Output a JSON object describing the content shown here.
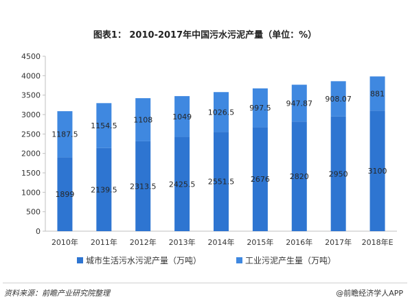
{
  "chart_data": {
    "type": "bar",
    "stacked": true,
    "title": "图表1： 2010-2017年中国污水污泥产量（单位：%）",
    "categories": [
      "2010年",
      "2011年",
      "2012年",
      "2013年",
      "2014年",
      "2015年",
      "2016年",
      "2017年",
      "2018年E"
    ],
    "series": [
      {
        "name": "城市生活污水污泥产量（万吨）",
        "values": [
          1899,
          2139.5,
          2313.5,
          2425.5,
          2551.5,
          2676,
          2820,
          2950,
          3100
        ],
        "labels": [
          "1899",
          "2139.5",
          "2313.5",
          "2425.5",
          "2551.5",
          "2676",
          "2820",
          "2950",
          "3100"
        ],
        "color": "#2e75d1"
      },
      {
        "name": "工业污泥产生量（万吨）",
        "values": [
          1187.5,
          1154.5,
          1108,
          1049,
          1026.5,
          997.5,
          947.87,
          908.07,
          881
        ],
        "labels": [
          "1187.5",
          "1154.5",
          "1108",
          "1049",
          "1026.5",
          "997.5",
          "947.87",
          "908.07",
          "881"
        ],
        "color": "#3f88e0"
      }
    ],
    "ylim": [
      0,
      4500
    ],
    "yticks": [
      0,
      500,
      1000,
      1500,
      2000,
      2500,
      3000,
      3500,
      4000,
      4500
    ],
    "grid": false,
    "legend": "bottom"
  },
  "footer": {
    "source": "资料来源：前瞻产业研究院整理",
    "credit": "@前瞻经济学人APP"
  }
}
